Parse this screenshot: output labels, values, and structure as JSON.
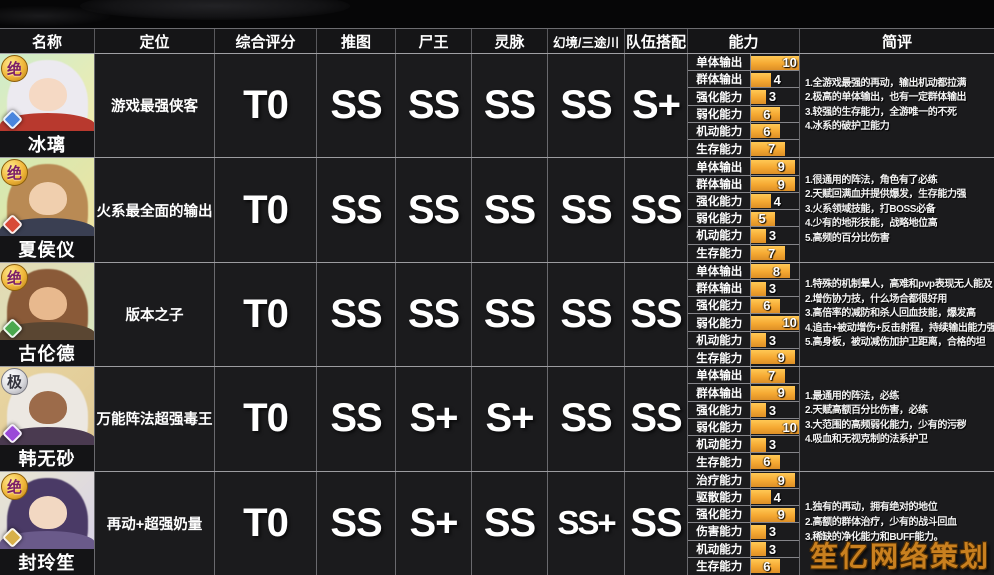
{
  "header": {
    "columns": [
      "名称",
      "定位",
      "综合评分",
      "推图",
      "尸王",
      "灵脉",
      "幻境/三途川",
      "队伍搭配",
      "能力",
      "简评"
    ]
  },
  "watermark": "笙亿网络策划",
  "colors": {
    "bar_fill": "#F5A832",
    "watermark": "#C9801F",
    "grid_line": "#9C9CA0",
    "cell_bg": "#1B1B1D",
    "text": "#FFFFFF"
  },
  "rows": [
    {
      "name": "冰璃",
      "badge": "绝",
      "element_icon": "ice-element-icon",
      "element_color": "#4a86dd",
      "portrait": {
        "bg1": "#cdeccb",
        "bg2": "#f2ecae",
        "hair": "#eceaf0",
        "skin": "#f5d9c4",
        "cloth": "#b8392e"
      },
      "role": "游戏最强侠客",
      "overall": "T0",
      "grades": [
        "SS",
        "SS",
        "SS",
        "SS",
        "S+"
      ],
      "abilities": [
        {
          "label": "单体输出",
          "value": 10
        },
        {
          "label": "群体输出",
          "value": 4
        },
        {
          "label": "强化能力",
          "value": 3
        },
        {
          "label": "弱化能力",
          "value": 6
        },
        {
          "label": "机动能力",
          "value": 6
        },
        {
          "label": "生存能力",
          "value": 7
        }
      ],
      "comments": [
        "1.全游戏最强的再动，输出机动都拉满",
        "2.极高的单体输出，也有一定群体输出",
        "3.较强的生存能力，全游唯一的不死",
        "4.冰系的破护卫能力"
      ]
    },
    {
      "name": "夏侯仪",
      "badge": "绝",
      "element_icon": "fire-element-icon",
      "element_color": "#d84a38",
      "portrait": {
        "bg1": "#d2eab4",
        "bg2": "#efe3a2",
        "hair": "#b98a54",
        "skin": "#f0cfae",
        "cloth": "#3a3f52"
      },
      "role": "火系最全面的输出",
      "overall": "T0",
      "grades": [
        "SS",
        "SS",
        "SS",
        "SS",
        "SS"
      ],
      "abilities": [
        {
          "label": "单体输出",
          "value": 9
        },
        {
          "label": "群体输出",
          "value": 9
        },
        {
          "label": "强化能力",
          "value": 4
        },
        {
          "label": "弱化能力",
          "value": 5
        },
        {
          "label": "机动能力",
          "value": 3
        },
        {
          "label": "生存能力",
          "value": 7
        }
      ],
      "comments": [
        "1.很通用的阵法，角色有了必练",
        "2.天赋回满血并提供爆发，生存能力强",
        "3.火系领域技能，打BOSS必备",
        "4.少有的地形技能，战略地位高",
        "5.高频的百分比伤害"
      ]
    },
    {
      "name": "古伦德",
      "badge": "绝",
      "element_icon": "wind-element-icon",
      "element_color": "#4aa84e",
      "portrait": {
        "bg1": "#e3d9b2",
        "bg2": "#d9e6c0",
        "hair": "#8a5a38",
        "skin": "#e8b98e",
        "cloth": "#5a4632"
      },
      "role": "版本之子",
      "overall": "T0",
      "grades": [
        "SS",
        "SS",
        "SS",
        "SS",
        "SS"
      ],
      "abilities": [
        {
          "label": "单体输出",
          "value": 8
        },
        {
          "label": "群体输出",
          "value": 3
        },
        {
          "label": "强化能力",
          "value": 6
        },
        {
          "label": "弱化能力",
          "value": 10
        },
        {
          "label": "机动能力",
          "value": 3
        },
        {
          "label": "生存能力",
          "value": 9
        }
      ],
      "comments": [
        "1.特殊的机制晕人，高难和pvp表现无人能及",
        "2.增伤协力技，什么场合都很好用",
        "3.高倍率的减防和杀人回血技能，爆发高",
        "4.追击+被动增伤+反击射程，持续输出能力强",
        "5.高身板，被动减伤加护卫距离，合格的坦"
      ]
    },
    {
      "name": "韩无砂",
      "badge": "极",
      "element_icon": "poison-element-icon",
      "element_color": "#9a4ad8",
      "portrait": {
        "bg1": "#e9d6a2",
        "bg2": "#dfc894",
        "hair": "#ece8e2",
        "skin": "#9c6b4a",
        "cloth": "#4a3a50"
      },
      "role": "万能阵法超强毒王",
      "overall": "T0",
      "grades": [
        "SS",
        "S+",
        "S+",
        "SS",
        "SS"
      ],
      "abilities": [
        {
          "label": "单体输出",
          "value": 7
        },
        {
          "label": "群体输出",
          "value": 9
        },
        {
          "label": "强化能力",
          "value": 3
        },
        {
          "label": "弱化能力",
          "value": 10
        },
        {
          "label": "机动能力",
          "value": 3
        },
        {
          "label": "生存能力",
          "value": 6
        }
      ],
      "comments": [
        "1.最通用的阵法，必练",
        "2.天赋高额百分比伤害，必练",
        "3.大范围的高频弱化能力，少有的污秽",
        "4.吸血和无视克制的法系护卫"
      ]
    },
    {
      "name": "封玲笙",
      "badge": "绝",
      "element_icon": "light-element-icon",
      "element_color": "#d8b04a",
      "portrait": {
        "bg1": "#e9e6d2",
        "bg2": "#d8d2e6",
        "hair": "#4a3a66",
        "skin": "#f2d8c2",
        "cloth": "#6a5a8a"
      },
      "role": "再动+超强奶量",
      "overall": "T0",
      "grades": [
        "SS",
        "S+",
        "SS",
        "SS+",
        "SS"
      ],
      "abilities": [
        {
          "label": "治疗能力",
          "value": 9
        },
        {
          "label": "驱散能力",
          "value": 4
        },
        {
          "label": "强化能力",
          "value": 9
        },
        {
          "label": "伤害能力",
          "value": 3
        },
        {
          "label": "机动能力",
          "value": 3
        },
        {
          "label": "生存能力",
          "value": 6
        }
      ],
      "comments": [
        "1.独有的再动，拥有绝对的地位",
        "2.高额的群体治疗，少有的战斗回血",
        "3.稀缺的净化能力和BUFF能力。"
      ]
    }
  ]
}
